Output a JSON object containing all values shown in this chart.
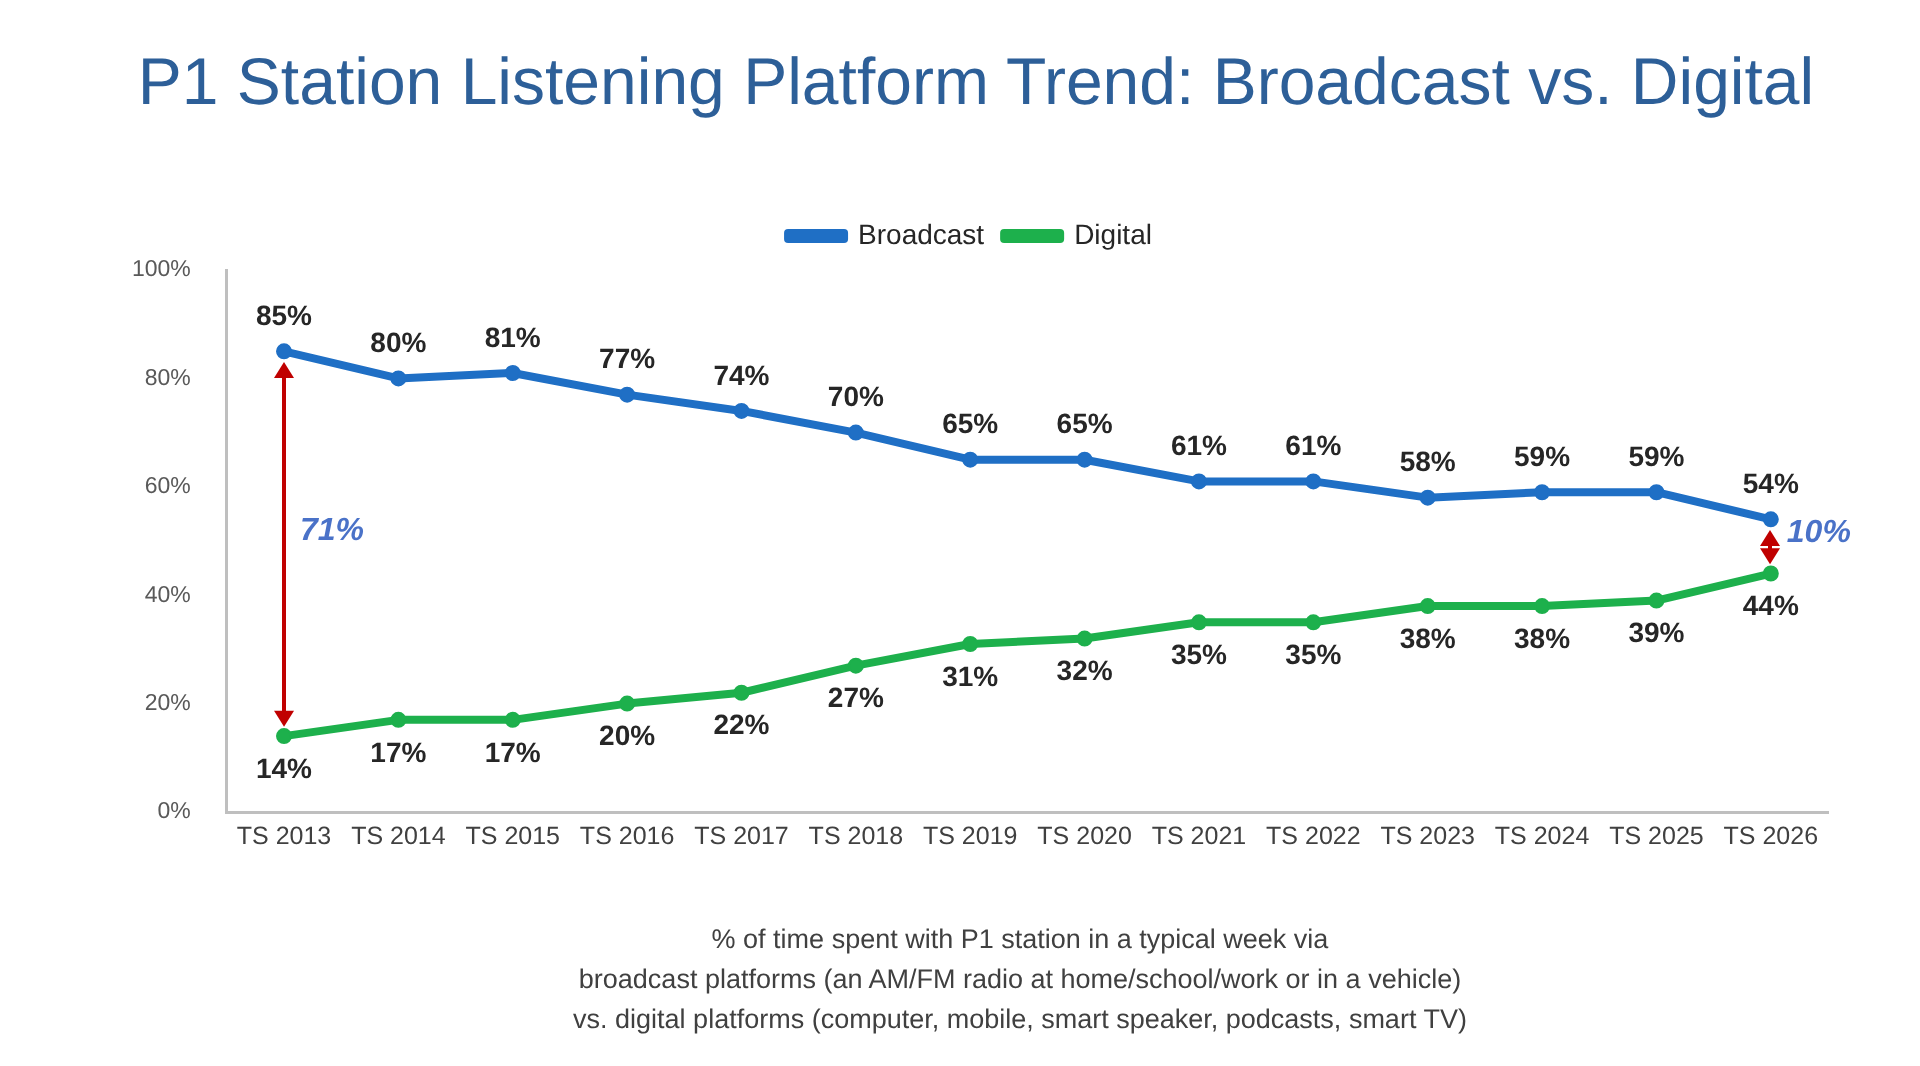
{
  "chart_data": {
    "type": "line",
    "title": "P1 Station Listening Platform Trend: Broadcast vs. Digital",
    "categories": [
      "TS 2013",
      "TS 2014",
      "TS 2015",
      "TS 2016",
      "TS 2017",
      "TS 2018",
      "TS 2019",
      "TS 2020",
      "TS 2021",
      "TS 2022",
      "TS 2023",
      "TS 2024",
      "TS 2025",
      "TS 2026"
    ],
    "series": [
      {
        "name": "Broadcast",
        "color": "#1f6fc5",
        "values": [
          85,
          80,
          81,
          77,
          74,
          70,
          65,
          65,
          61,
          61,
          58,
          59,
          59,
          54
        ],
        "value_labels": [
          "85%",
          "80%",
          "81%",
          "77%",
          "74%",
          "70%",
          "65%",
          "65%",
          "61%",
          "61%",
          "58%",
          "59%",
          "59%",
          "54%"
        ]
      },
      {
        "name": "Digital",
        "color": "#1db04c",
        "values": [
          14,
          17,
          17,
          20,
          22,
          27,
          31,
          32,
          35,
          35,
          38,
          38,
          39,
          44
        ],
        "value_labels": [
          "14%",
          "17%",
          "17%",
          "20%",
          "22%",
          "27%",
          "31%",
          "32%",
          "35%",
          "35%",
          "38%",
          "38%",
          "39%",
          "44%"
        ]
      }
    ],
    "ylim": [
      0,
      100
    ],
    "yticks": [
      {
        "value": 0,
        "label": "0%"
      },
      {
        "value": 20,
        "label": "20%"
      },
      {
        "value": 40,
        "label": "40%"
      },
      {
        "value": 60,
        "label": "60%"
      },
      {
        "value": 80,
        "label": "80%"
      },
      {
        "value": 100,
        "label": "100%"
      }
    ],
    "annotations": [
      "71%",
      "10%",
      "% of time spent with P1 station in a typical week via\nbroadcast platforms (an AM/FM radio at home/school/work or in a vehicle)\nvs. digital platforms (computer, mobile, smart speaker, podcasts, smart TV)"
    ],
    "grid": false,
    "legend": "top",
    "marker": "circle",
    "line_style": "solid"
  }
}
